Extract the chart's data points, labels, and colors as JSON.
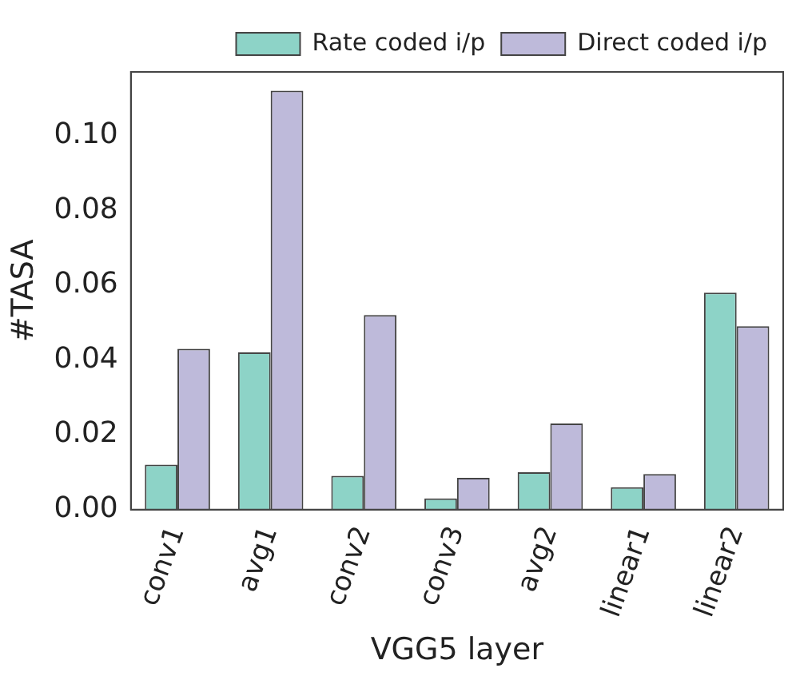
{
  "chart_data": {
    "type": "bar",
    "xlabel": "VGG5 layer",
    "ylabel": "#TASA",
    "categories": [
      "conv1",
      "avg1",
      "conv2",
      "conv3",
      "avg2",
      "linear1",
      "linear2"
    ],
    "series": [
      {
        "name": "Rate coded i/p",
        "color": "#8dd3c7",
        "values": [
          0.012,
          0.042,
          0.009,
          0.003,
          0.01,
          0.006,
          0.058
        ]
      },
      {
        "name": "Direct coded i/p",
        "color": "#bebada",
        "values": [
          0.043,
          0.112,
          0.052,
          0.0085,
          0.023,
          0.0095,
          0.049
        ]
      }
    ],
    "ylim": [
      0,
      0.117
    ],
    "yticks": [
      {
        "value": 0,
        "label": "0.00"
      },
      {
        "value": 0.02,
        "label": "0.02"
      },
      {
        "value": 0.04,
        "label": "0.04"
      },
      {
        "value": 0.06,
        "label": "0.06"
      },
      {
        "value": 0.08,
        "label": "0.08"
      },
      {
        "value": 0.1,
        "label": "0.10"
      }
    ],
    "grid": false,
    "legend": "top right"
  }
}
